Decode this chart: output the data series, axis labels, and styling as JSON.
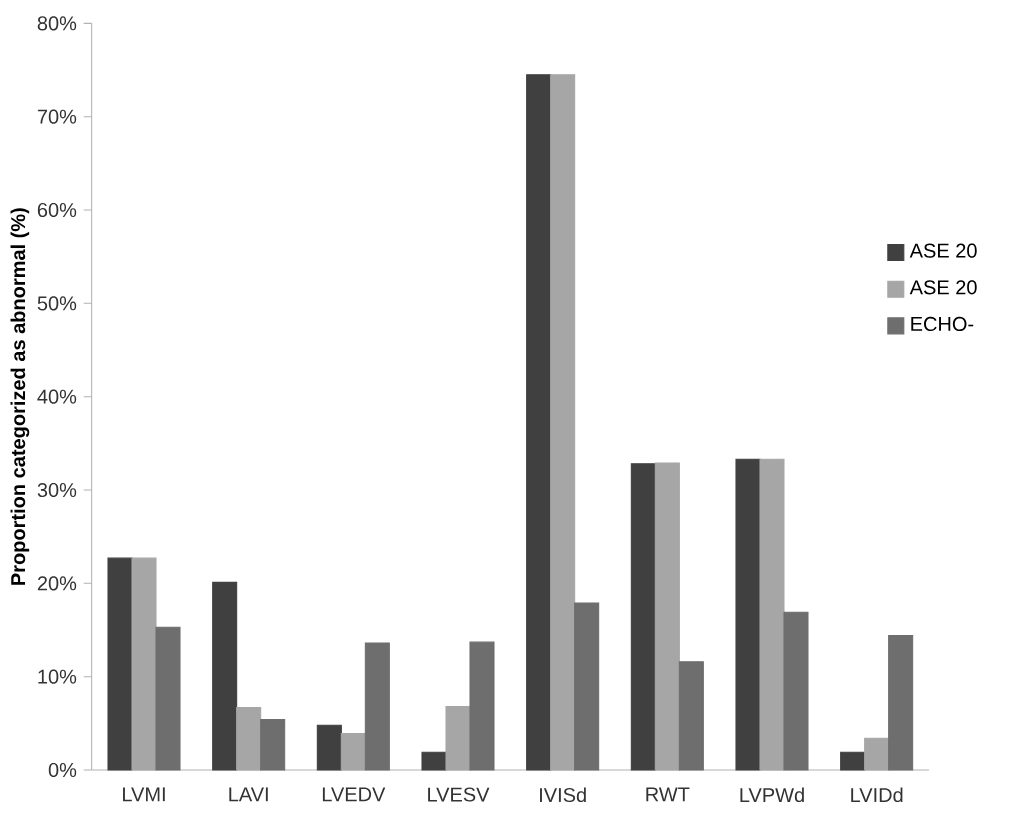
{
  "chart_data": {
    "type": "bar",
    "ylabel": "Proportion categorized as abnormal (%)",
    "categories": [
      "LVMI",
      "LAVI",
      "LVEDV",
      "LVESV",
      "IVISd",
      "RWT",
      "LVPWd",
      "LVIDd"
    ],
    "series": [
      {
        "name": "ASE 20",
        "color": "#404040",
        "values": [
          22.7,
          20.1,
          4.8,
          1.9,
          74.5,
          32.8,
          33.3,
          1.9
        ]
      },
      {
        "name": "ASE 20",
        "color": "#a6a6a6",
        "values": [
          22.7,
          6.7,
          3.9,
          6.8,
          74.5,
          32.9,
          33.3,
          3.4
        ]
      },
      {
        "name": "ECHO-",
        "color": "#6e6e6e",
        "values": [
          15.3,
          5.4,
          13.6,
          13.7,
          17.9,
          11.6,
          16.9,
          14.4
        ]
      }
    ],
    "ylim": [
      0,
      80
    ],
    "yticks": [
      {
        "value": 0,
        "label": "0%"
      },
      {
        "value": 10,
        "label": "10%"
      },
      {
        "value": 20,
        "label": "20%"
      },
      {
        "value": 30,
        "label": "30%"
      },
      {
        "value": 40,
        "label": "40%"
      },
      {
        "value": 50,
        "label": "50%"
      },
      {
        "value": 60,
        "label": "60%"
      },
      {
        "value": 70,
        "label": "70%"
      },
      {
        "value": 80,
        "label": "80%"
      }
    ],
    "grid": false,
    "legend": "right"
  }
}
